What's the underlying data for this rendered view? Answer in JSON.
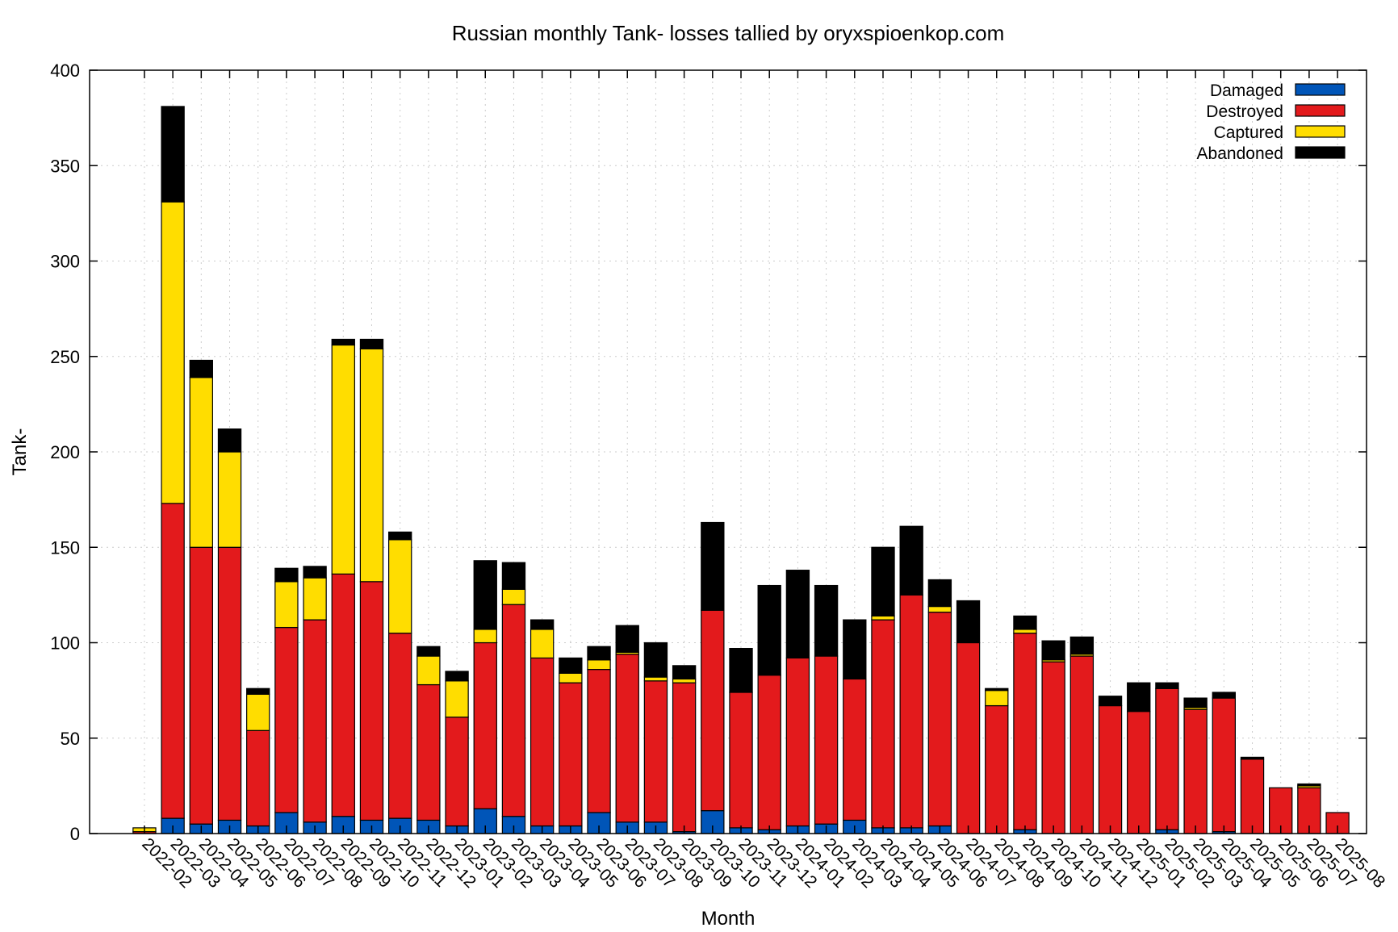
{
  "chart_data": {
    "type": "bar",
    "stacked": true,
    "title": "Russian monthly Tank- losses tallied by oryxspioenkop.com",
    "xlabel": "Month",
    "ylabel": "Tank-",
    "ylim": [
      0,
      400
    ],
    "yticks": [
      0,
      50,
      100,
      150,
      200,
      250,
      300,
      350,
      400
    ],
    "grid": true,
    "legend_position": "top-right",
    "categories": [
      "2022-02",
      "2022-03",
      "2022-04",
      "2022-05",
      "2022-06",
      "2022-07",
      "2022-08",
      "2022-09",
      "2022-10",
      "2022-11",
      "2022-12",
      "2023-01",
      "2023-02",
      "2023-03",
      "2023-04",
      "2023-05",
      "2023-06",
      "2023-07",
      "2023-08",
      "2023-09",
      "2023-10",
      "2023-11",
      "2023-12",
      "2024-01",
      "2024-02",
      "2024-03",
      "2024-04",
      "2024-05",
      "2024-06",
      "2024-07",
      "2024-08",
      "2024-09",
      "2024-10",
      "2024-11",
      "2024-12",
      "2025-01",
      "2025-02",
      "2025-03",
      "2025-04",
      "2025-05",
      "2025-06",
      "2025-07",
      "2025-08"
    ],
    "series": [
      {
        "name": "Damaged",
        "color": "#0055b8",
        "values": [
          0,
          8,
          5,
          7,
          4,
          11,
          6,
          9,
          7,
          8,
          7,
          4,
          13,
          9,
          4,
          4,
          11,
          6,
          6,
          1,
          12,
          3,
          2,
          4,
          5,
          7,
          3,
          3,
          4,
          0,
          0,
          2,
          0,
          0,
          0,
          0,
          2,
          0,
          1,
          0,
          0,
          0,
          0
        ]
      },
      {
        "name": "Destroyed",
        "color": "#e31a1c",
        "values": [
          1,
          165,
          145,
          143,
          50,
          97,
          106,
          127,
          125,
          97,
          71,
          57,
          87,
          111,
          88,
          75,
          75,
          88,
          74,
          78,
          105,
          71,
          81,
          88,
          88,
          74,
          109,
          122,
          112,
          100,
          67,
          103,
          90,
          93,
          67,
          64,
          74,
          65,
          70,
          39,
          24,
          24,
          11
        ]
      },
      {
        "name": "Captured",
        "color": "#ffdd00",
        "values": [
          2,
          158,
          89,
          50,
          19,
          24,
          22,
          120,
          122,
          49,
          15,
          19,
          7,
          8,
          15,
          5,
          5,
          1,
          2,
          2,
          0,
          0,
          0,
          0,
          0,
          0,
          2,
          0,
          3,
          0,
          8,
          2,
          1,
          1,
          0,
          0,
          0,
          1,
          0,
          0,
          0,
          1,
          0
        ]
      },
      {
        "name": "Abandoned",
        "color": "#000000",
        "values": [
          0,
          50,
          9,
          12,
          3,
          7,
          6,
          3,
          5,
          4,
          5,
          5,
          36,
          14,
          5,
          8,
          7,
          14,
          18,
          7,
          46,
          23,
          47,
          46,
          37,
          31,
          36,
          36,
          14,
          22,
          1,
          7,
          10,
          9,
          5,
          15,
          3,
          5,
          3,
          1,
          0,
          1,
          0
        ]
      }
    ]
  }
}
